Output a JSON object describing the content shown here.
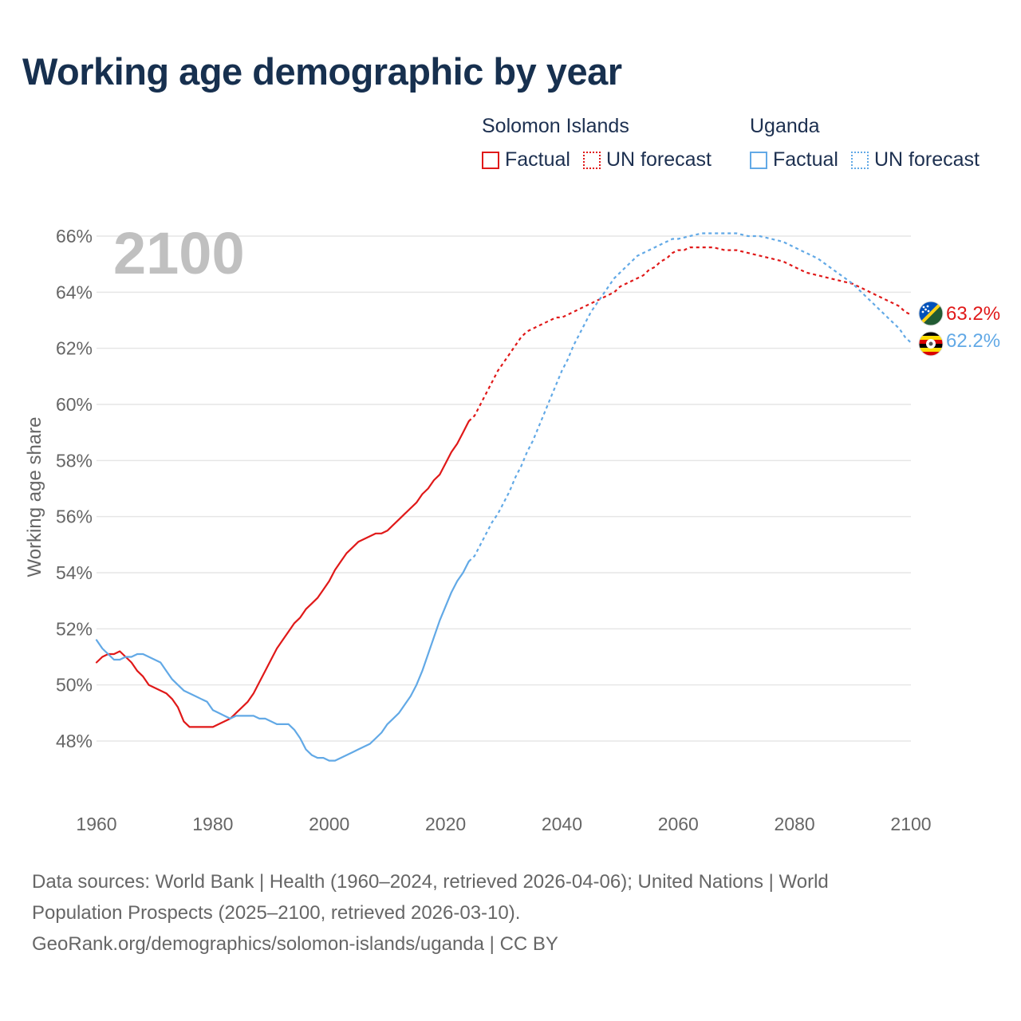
{
  "title": "Working age demographic by year",
  "legend": {
    "groups": [
      {
        "title": "Solomon Islands",
        "factual": "Factual",
        "forecast": "UN forecast"
      },
      {
        "title": "Uganda",
        "factual": "Factual",
        "forecast": "UN forecast"
      }
    ]
  },
  "colors": {
    "solomon": "#e01919",
    "uganda": "#62a9e6",
    "grid": "#e6e6e6",
    "axis_text": "#666666",
    "year_label": "#c0c0c0"
  },
  "chart_data": {
    "type": "line",
    "title": "Working age demographic by year",
    "ylabel": "Working age share",
    "xlabel": "",
    "xlim": [
      1960,
      2100
    ],
    "ylim": [
      46.2,
      67
    ],
    "x_ticks": [
      1960,
      1980,
      2000,
      2020,
      2040,
      2060,
      2080,
      2100
    ],
    "x_tick_labels": [
      "1960",
      "1980",
      "2000",
      "2020",
      "2040",
      "2060",
      "2080",
      "2100"
    ],
    "y_ticks": [
      48,
      50,
      52,
      54,
      56,
      58,
      60,
      62,
      64,
      66
    ],
    "y_tick_labels": [
      "48%",
      "50%",
      "52%",
      "54%",
      "56%",
      "58%",
      "60%",
      "62%",
      "64%",
      "66%"
    ],
    "year_label": "2100",
    "factual_until": 2024,
    "series": [
      {
        "name": "Solomon Islands",
        "color": "#e01919",
        "end_label": "63.2%",
        "flag": "solomon-islands-flag",
        "points": [
          [
            1960,
            50.8
          ],
          [
            1961,
            51.0
          ],
          [
            1962,
            51.1
          ],
          [
            1963,
            51.1
          ],
          [
            1964,
            51.2
          ],
          [
            1965,
            51.0
          ],
          [
            1966,
            50.8
          ],
          [
            1967,
            50.5
          ],
          [
            1968,
            50.3
          ],
          [
            1969,
            50.0
          ],
          [
            1970,
            49.9
          ],
          [
            1971,
            49.8
          ],
          [
            1972,
            49.7
          ],
          [
            1973,
            49.5
          ],
          [
            1974,
            49.2
          ],
          [
            1975,
            48.7
          ],
          [
            1976,
            48.5
          ],
          [
            1978,
            48.5
          ],
          [
            1980,
            48.5
          ],
          [
            1981,
            48.6
          ],
          [
            1982,
            48.7
          ],
          [
            1983,
            48.8
          ],
          [
            1984,
            49.0
          ],
          [
            1985,
            49.2
          ],
          [
            1986,
            49.4
          ],
          [
            1987,
            49.7
          ],
          [
            1988,
            50.1
          ],
          [
            1989,
            50.5
          ],
          [
            1990,
            50.9
          ],
          [
            1991,
            51.3
          ],
          [
            1992,
            51.6
          ],
          [
            1993,
            51.9
          ],
          [
            1994,
            52.2
          ],
          [
            1995,
            52.4
          ],
          [
            1996,
            52.7
          ],
          [
            1997,
            52.9
          ],
          [
            1998,
            53.1
          ],
          [
            1999,
            53.4
          ],
          [
            2000,
            53.7
          ],
          [
            2001,
            54.1
          ],
          [
            2002,
            54.4
          ],
          [
            2003,
            54.7
          ],
          [
            2004,
            54.9
          ],
          [
            2005,
            55.1
          ],
          [
            2006,
            55.2
          ],
          [
            2007,
            55.3
          ],
          [
            2008,
            55.4
          ],
          [
            2009,
            55.4
          ],
          [
            2010,
            55.5
          ],
          [
            2011,
            55.7
          ],
          [
            2012,
            55.9
          ],
          [
            2013,
            56.1
          ],
          [
            2014,
            56.3
          ],
          [
            2015,
            56.5
          ],
          [
            2016,
            56.8
          ],
          [
            2017,
            57.0
          ],
          [
            2018,
            57.3
          ],
          [
            2019,
            57.5
          ],
          [
            2020,
            57.9
          ],
          [
            2021,
            58.3
          ],
          [
            2022,
            58.6
          ],
          [
            2023,
            59.0
          ],
          [
            2024,
            59.4
          ],
          [
            2025,
            59.6
          ],
          [
            2026,
            60.0
          ],
          [
            2027,
            60.4
          ],
          [
            2028,
            60.8
          ],
          [
            2029,
            61.2
          ],
          [
            2030,
            61.5
          ],
          [
            2031,
            61.8
          ],
          [
            2032,
            62.1
          ],
          [
            2033,
            62.4
          ],
          [
            2034,
            62.6
          ],
          [
            2035,
            62.7
          ],
          [
            2036,
            62.8
          ],
          [
            2037,
            62.9
          ],
          [
            2038,
            63.0
          ],
          [
            2039,
            63.1
          ],
          [
            2040,
            63.1
          ],
          [
            2041,
            63.2
          ],
          [
            2042,
            63.3
          ],
          [
            2043,
            63.4
          ],
          [
            2044,
            63.5
          ],
          [
            2045,
            63.6
          ],
          [
            2046,
            63.7
          ],
          [
            2047,
            63.8
          ],
          [
            2048,
            63.9
          ],
          [
            2049,
            64.0
          ],
          [
            2050,
            64.2
          ],
          [
            2051,
            64.3
          ],
          [
            2052,
            64.4
          ],
          [
            2053,
            64.5
          ],
          [
            2054,
            64.6
          ],
          [
            2055,
            64.8
          ],
          [
            2056,
            64.9
          ],
          [
            2057,
            65.1
          ],
          [
            2058,
            65.2
          ],
          [
            2059,
            65.4
          ],
          [
            2060,
            65.5
          ],
          [
            2061,
            65.5
          ],
          [
            2062,
            65.6
          ],
          [
            2064,
            65.6
          ],
          [
            2066,
            65.6
          ],
          [
            2068,
            65.5
          ],
          [
            2070,
            65.5
          ],
          [
            2072,
            65.4
          ],
          [
            2074,
            65.3
          ],
          [
            2076,
            65.2
          ],
          [
            2078,
            65.1
          ],
          [
            2080,
            64.9
          ],
          [
            2082,
            64.7
          ],
          [
            2084,
            64.6
          ],
          [
            2086,
            64.5
          ],
          [
            2088,
            64.4
          ],
          [
            2090,
            64.3
          ],
          [
            2092,
            64.1
          ],
          [
            2094,
            63.9
          ],
          [
            2096,
            63.7
          ],
          [
            2098,
            63.5
          ],
          [
            2099,
            63.3
          ],
          [
            2100,
            63.2
          ]
        ]
      },
      {
        "name": "Uganda",
        "color": "#62a9e6",
        "end_label": "62.2%",
        "flag": "uganda-flag",
        "points": [
          [
            1960,
            51.6
          ],
          [
            1961,
            51.3
          ],
          [
            1962,
            51.1
          ],
          [
            1963,
            50.9
          ],
          [
            1964,
            50.9
          ],
          [
            1965,
            51.0
          ],
          [
            1966,
            51.0
          ],
          [
            1967,
            51.1
          ],
          [
            1968,
            51.1
          ],
          [
            1969,
            51.0
          ],
          [
            1970,
            50.9
          ],
          [
            1971,
            50.8
          ],
          [
            1972,
            50.5
          ],
          [
            1973,
            50.2
          ],
          [
            1974,
            50.0
          ],
          [
            1975,
            49.8
          ],
          [
            1976,
            49.7
          ],
          [
            1977,
            49.6
          ],
          [
            1978,
            49.5
          ],
          [
            1979,
            49.4
          ],
          [
            1980,
            49.1
          ],
          [
            1981,
            49.0
          ],
          [
            1982,
            48.9
          ],
          [
            1983,
            48.8
          ],
          [
            1984,
            48.9
          ],
          [
            1985,
            48.9
          ],
          [
            1986,
            48.9
          ],
          [
            1987,
            48.9
          ],
          [
            1988,
            48.8
          ],
          [
            1989,
            48.8
          ],
          [
            1990,
            48.7
          ],
          [
            1991,
            48.6
          ],
          [
            1992,
            48.6
          ],
          [
            1993,
            48.6
          ],
          [
            1994,
            48.4
          ],
          [
            1995,
            48.1
          ],
          [
            1996,
            47.7
          ],
          [
            1997,
            47.5
          ],
          [
            1998,
            47.4
          ],
          [
            1999,
            47.4
          ],
          [
            2000,
            47.3
          ],
          [
            2001,
            47.3
          ],
          [
            2002,
            47.4
          ],
          [
            2003,
            47.5
          ],
          [
            2004,
            47.6
          ],
          [
            2005,
            47.7
          ],
          [
            2006,
            47.8
          ],
          [
            2007,
            47.9
          ],
          [
            2008,
            48.1
          ],
          [
            2009,
            48.3
          ],
          [
            2010,
            48.6
          ],
          [
            2011,
            48.8
          ],
          [
            2012,
            49.0
          ],
          [
            2013,
            49.3
          ],
          [
            2014,
            49.6
          ],
          [
            2015,
            50.0
          ],
          [
            2016,
            50.5
          ],
          [
            2017,
            51.1
          ],
          [
            2018,
            51.7
          ],
          [
            2019,
            52.3
          ],
          [
            2020,
            52.8
          ],
          [
            2021,
            53.3
          ],
          [
            2022,
            53.7
          ],
          [
            2023,
            54.0
          ],
          [
            2024,
            54.4
          ],
          [
            2025,
            54.6
          ],
          [
            2026,
            55.0
          ],
          [
            2027,
            55.4
          ],
          [
            2028,
            55.8
          ],
          [
            2029,
            56.1
          ],
          [
            2030,
            56.5
          ],
          [
            2031,
            56.9
          ],
          [
            2032,
            57.4
          ],
          [
            2033,
            57.8
          ],
          [
            2034,
            58.3
          ],
          [
            2035,
            58.7
          ],
          [
            2036,
            59.2
          ],
          [
            2037,
            59.7
          ],
          [
            2038,
            60.2
          ],
          [
            2039,
            60.7
          ],
          [
            2040,
            61.2
          ],
          [
            2041,
            61.6
          ],
          [
            2042,
            62.1
          ],
          [
            2043,
            62.5
          ],
          [
            2044,
            62.9
          ],
          [
            2045,
            63.3
          ],
          [
            2046,
            63.6
          ],
          [
            2047,
            63.9
          ],
          [
            2048,
            64.2
          ],
          [
            2049,
            64.5
          ],
          [
            2050,
            64.7
          ],
          [
            2051,
            64.9
          ],
          [
            2052,
            65.1
          ],
          [
            2053,
            65.3
          ],
          [
            2054,
            65.4
          ],
          [
            2055,
            65.5
          ],
          [
            2056,
            65.6
          ],
          [
            2057,
            65.7
          ],
          [
            2058,
            65.8
          ],
          [
            2059,
            65.9
          ],
          [
            2060,
            65.9
          ],
          [
            2062,
            66.0
          ],
          [
            2064,
            66.1
          ],
          [
            2066,
            66.1
          ],
          [
            2068,
            66.1
          ],
          [
            2070,
            66.1
          ],
          [
            2072,
            66.0
          ],
          [
            2074,
            66.0
          ],
          [
            2076,
            65.9
          ],
          [
            2078,
            65.8
          ],
          [
            2080,
            65.6
          ],
          [
            2082,
            65.4
          ],
          [
            2084,
            65.2
          ],
          [
            2086,
            64.9
          ],
          [
            2088,
            64.6
          ],
          [
            2090,
            64.3
          ],
          [
            2092,
            63.9
          ],
          [
            2094,
            63.5
          ],
          [
            2096,
            63.1
          ],
          [
            2098,
            62.7
          ],
          [
            2099,
            62.4
          ],
          [
            2100,
            62.2
          ]
        ]
      }
    ]
  },
  "sources": {
    "line1": "Data sources: World Bank | Health (1960–2024, retrieved 2026-04-06); United Nations | World",
    "line2": "Population Prospects (2025–2100, retrieved 2026-03-10).",
    "line3": "GeoRank.org/demographics/solomon-islands/uganda | CC BY"
  }
}
